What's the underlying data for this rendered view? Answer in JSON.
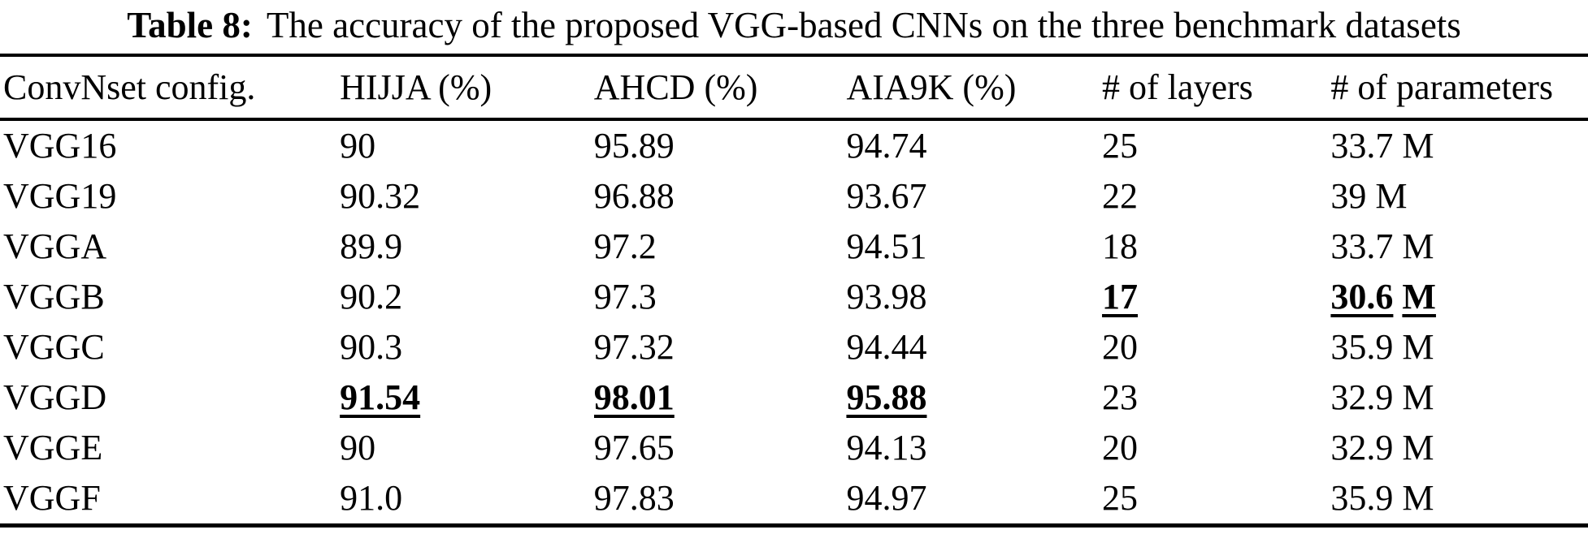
{
  "caption": {
    "label": "Table 8:",
    "text": "The accuracy of the proposed VGG-based CNNs on the three benchmark datasets"
  },
  "table": {
    "columns": [
      "ConvNset config.",
      "HIJJA (%)",
      "AHCD (%)",
      "AIA9K (%)",
      "# of layers",
      "# of parameters"
    ],
    "rows": [
      {
        "config": "VGG16",
        "hijja": "90",
        "ahcd": "95.89",
        "aia9k": "94.74",
        "layers": "25",
        "params": "33.7 M"
      },
      {
        "config": "VGG19",
        "hijja": "90.32",
        "ahcd": "96.88",
        "aia9k": "93.67",
        "layers": "22",
        "params": "39 M"
      },
      {
        "config": "VGGA",
        "hijja": "89.9",
        "ahcd": "97.2",
        "aia9k": "94.51",
        "layers": "18",
        "params": "33.7 M"
      },
      {
        "config": "VGGB",
        "hijja": "90.2",
        "ahcd": "97.3",
        "aia9k": "93.98",
        "layers": "17",
        "params_parts": [
          "30.6",
          "M"
        ]
      },
      {
        "config": "VGGC",
        "hijja": "90.3",
        "ahcd": "97.32",
        "aia9k": "94.44",
        "layers": "20",
        "params": "35.9 M"
      },
      {
        "config": "VGGD",
        "hijja": "91.54",
        "ahcd": "98.01",
        "aia9k": "95.88",
        "layers": "23",
        "params": "32.9 M"
      },
      {
        "config": "VGGE",
        "hijja": "90",
        "ahcd": "97.65",
        "aia9k": "94.13",
        "layers": "20",
        "params": "32.9 M"
      },
      {
        "config": "VGGF",
        "hijja": "91.0",
        "ahcd": "97.83",
        "aia9k": "94.97",
        "layers": "25",
        "params": "35.9 M"
      }
    ]
  }
}
